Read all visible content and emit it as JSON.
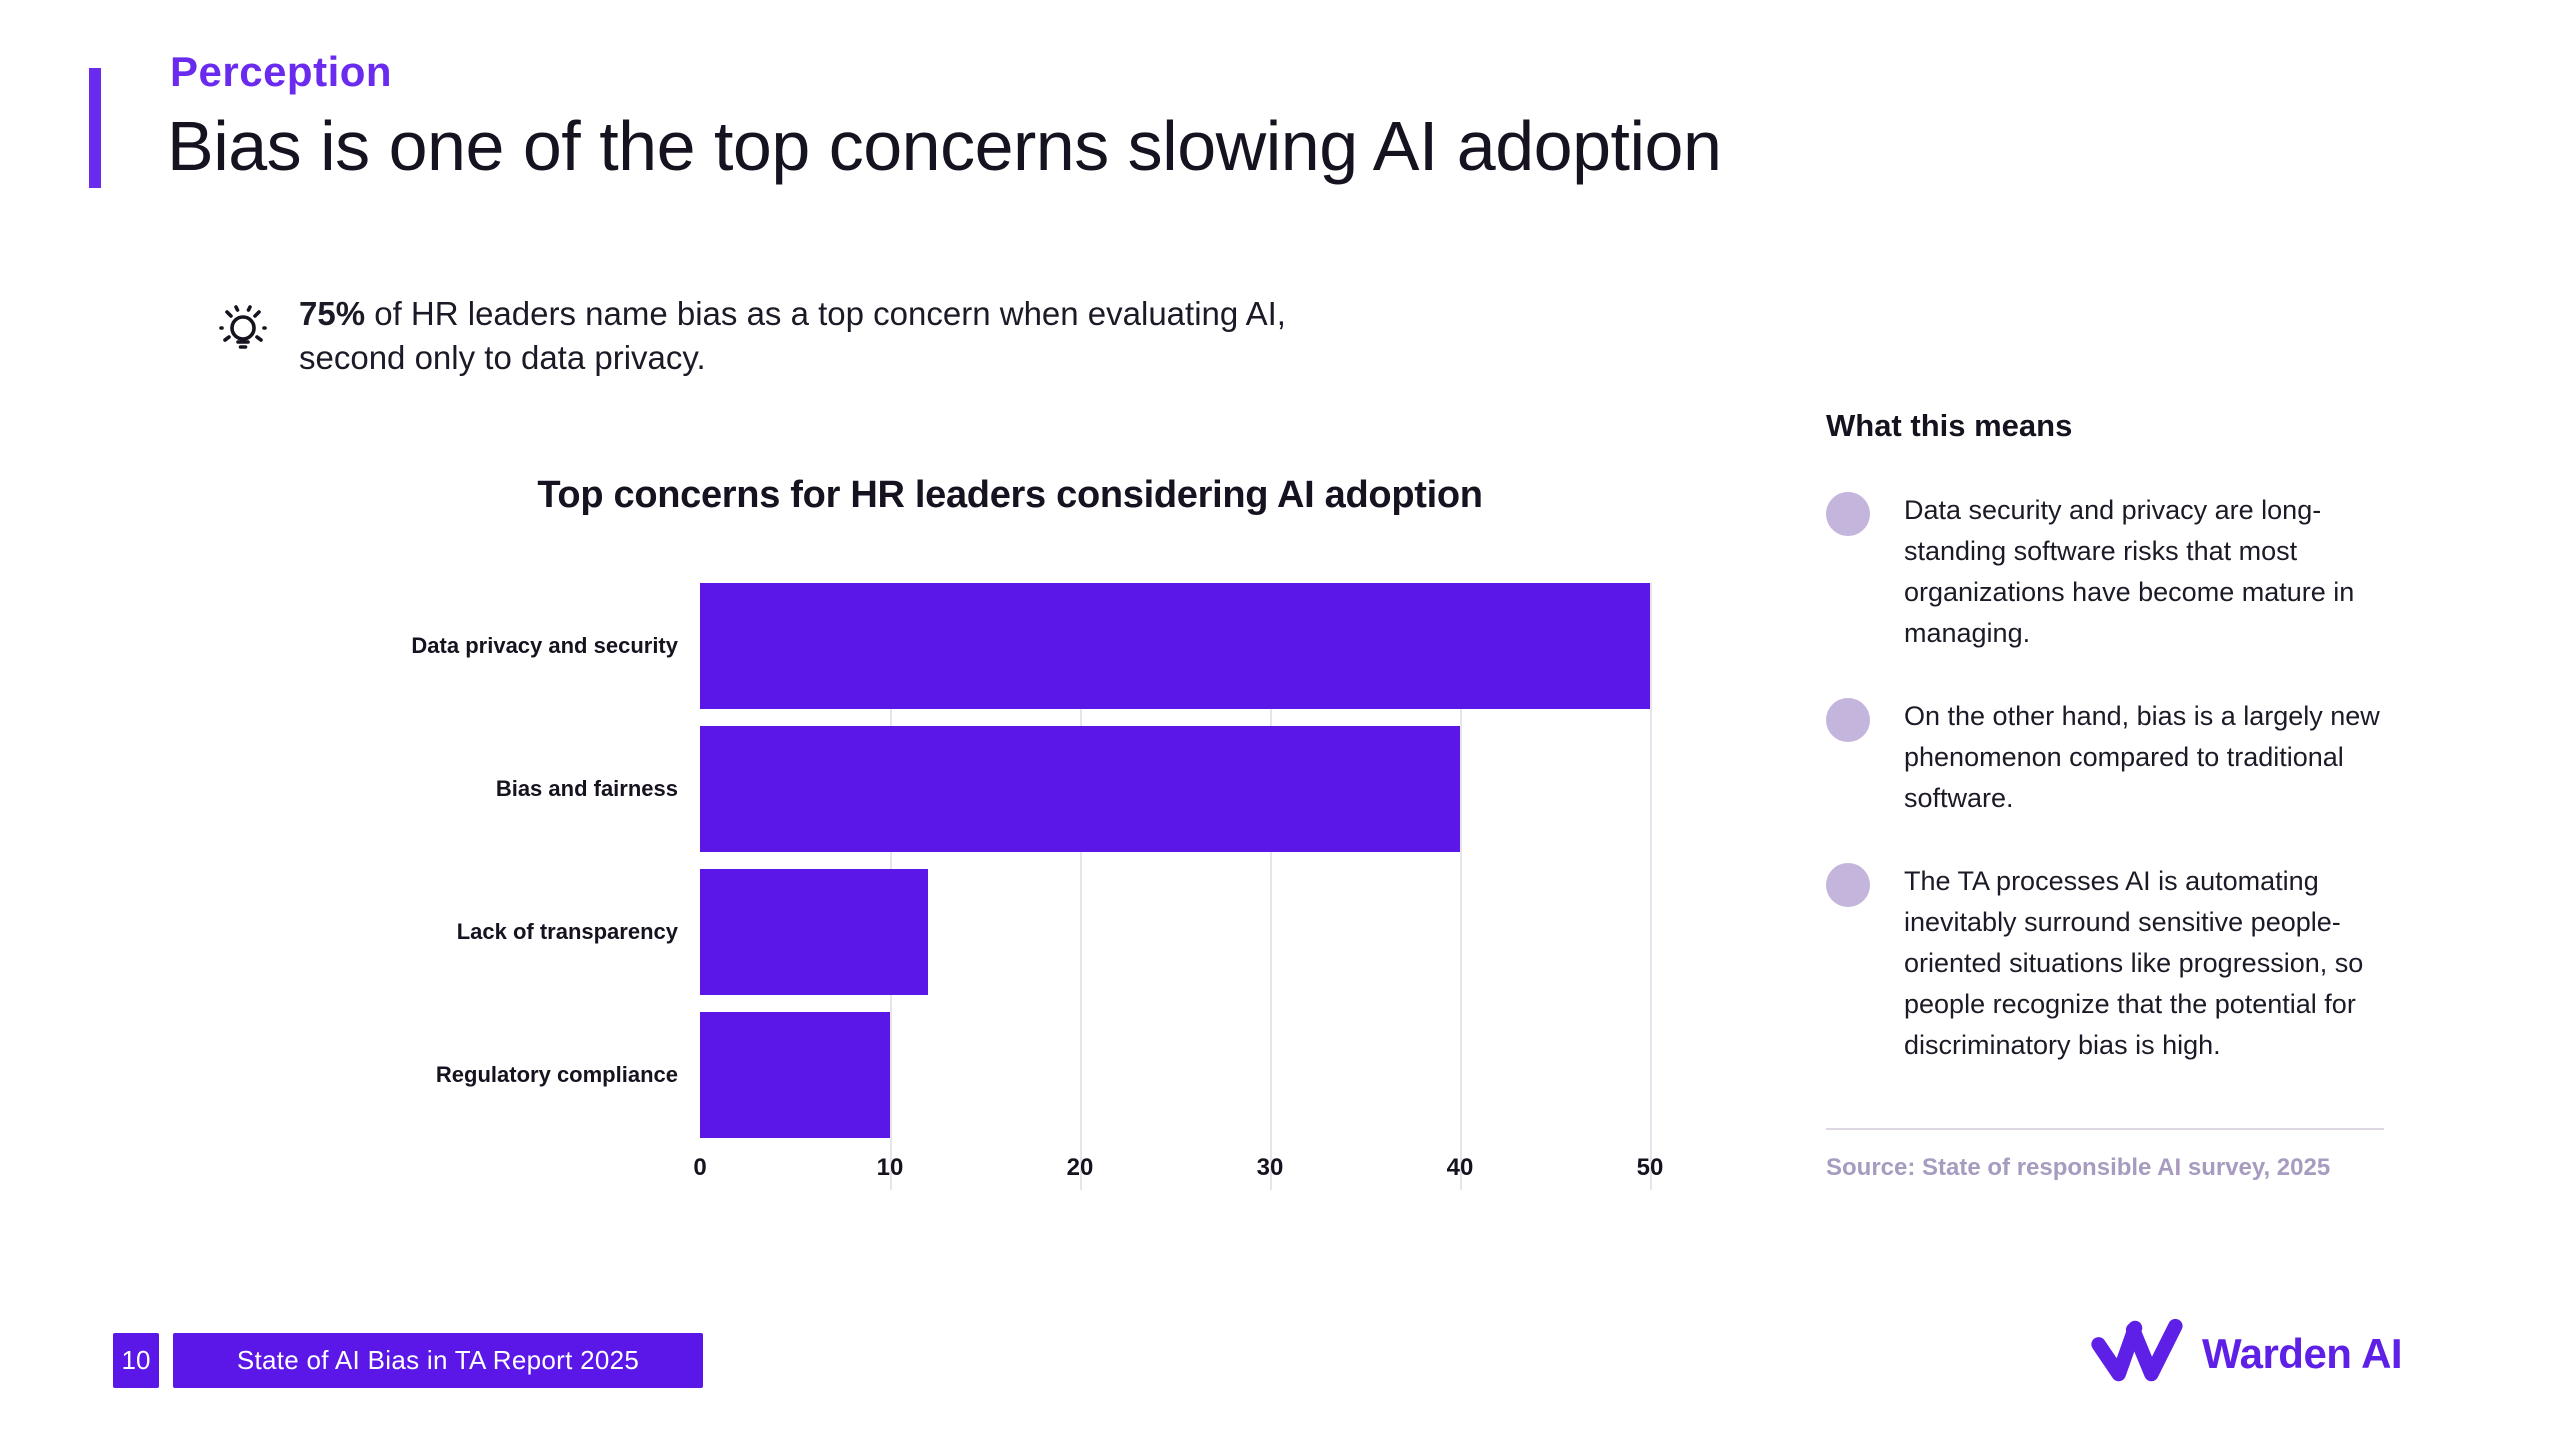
{
  "header": {
    "kicker": "Perception",
    "title": "Bias is one of the top concerns slowing AI adoption"
  },
  "callout": {
    "stat": "75%",
    "line1": " of HR leaders name bias as a top concern when evaluating AI,",
    "line2": "second only to data privacy."
  },
  "chart_data": {
    "type": "bar",
    "orientation": "horizontal",
    "title": "Top concerns for HR leaders considering AI adoption",
    "categories": [
      "Data privacy and security",
      "Bias and fairness",
      "Lack of transparency",
      "Regulatory compliance"
    ],
    "values": [
      50,
      40,
      12,
      10
    ],
    "xlabel": "",
    "ylabel": "",
    "xlim": [
      0,
      50
    ],
    "xticks": [
      0,
      10,
      20,
      30,
      40,
      50
    ],
    "grid": true,
    "legend": "none"
  },
  "right_panel": {
    "heading": "What this means",
    "bullets": [
      "Data security and privacy are long-standing software risks that most organizations have become mature in managing.",
      "On the other hand, bias is a largely new phenomenon compared to traditional software.",
      "The TA processes AI is automating inevitably surround sensitive people-oriented situations like progression, so people recognize that the potential for discriminatory bias is high."
    ],
    "source": "Source: State of responsible AI survey, 2025"
  },
  "footer": {
    "page_number": "10",
    "report_title": "State of AI Bias in TA Report 2025"
  },
  "logo": {
    "brand_name": "Warden AI"
  },
  "colors": {
    "accent_purple": "#6B2BEE",
    "bar_purple": "#5A17E8",
    "footer_purple": "#5A17E8",
    "logo_purple": "#5E1FE6",
    "bullet_lavender": "#C4B5DC",
    "source_text": "#A79BC0",
    "grid_line": "#E6E4EC",
    "text_dark": "#17121F"
  }
}
